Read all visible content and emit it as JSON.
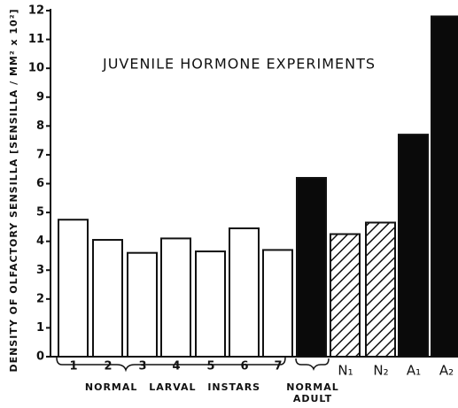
{
  "chart_data": {
    "type": "bar",
    "title": "JUVENILE HORMONE EXPERIMENTS",
    "y_label": "DENSITY OF OLFACTORY SENSILLA [SENSILLA / MM² x 10²]",
    "categories": [
      "1",
      "2",
      "3",
      "4",
      "5",
      "6",
      "7",
      null,
      "N₁",
      "N₂",
      "A₁",
      "A₂"
    ],
    "values": [
      4.75,
      4.05,
      3.6,
      4.1,
      3.65,
      4.45,
      3.7,
      6.2,
      4.25,
      4.65,
      7.7,
      11.8
    ],
    "fills": [
      "white",
      "white",
      "white",
      "white",
      "white",
      "white",
      "white",
      "black",
      "hatched",
      "hatched",
      "black",
      "black"
    ],
    "group_labels": [
      "NORMAL LARVAL INSTARS",
      "NORMAL ADULT"
    ],
    "ylim": [
      0,
      12
    ],
    "yticks": [
      0,
      1,
      2,
      3,
      4,
      5,
      6,
      7,
      8,
      9,
      10,
      11,
      12
    ],
    "grid": false
  }
}
